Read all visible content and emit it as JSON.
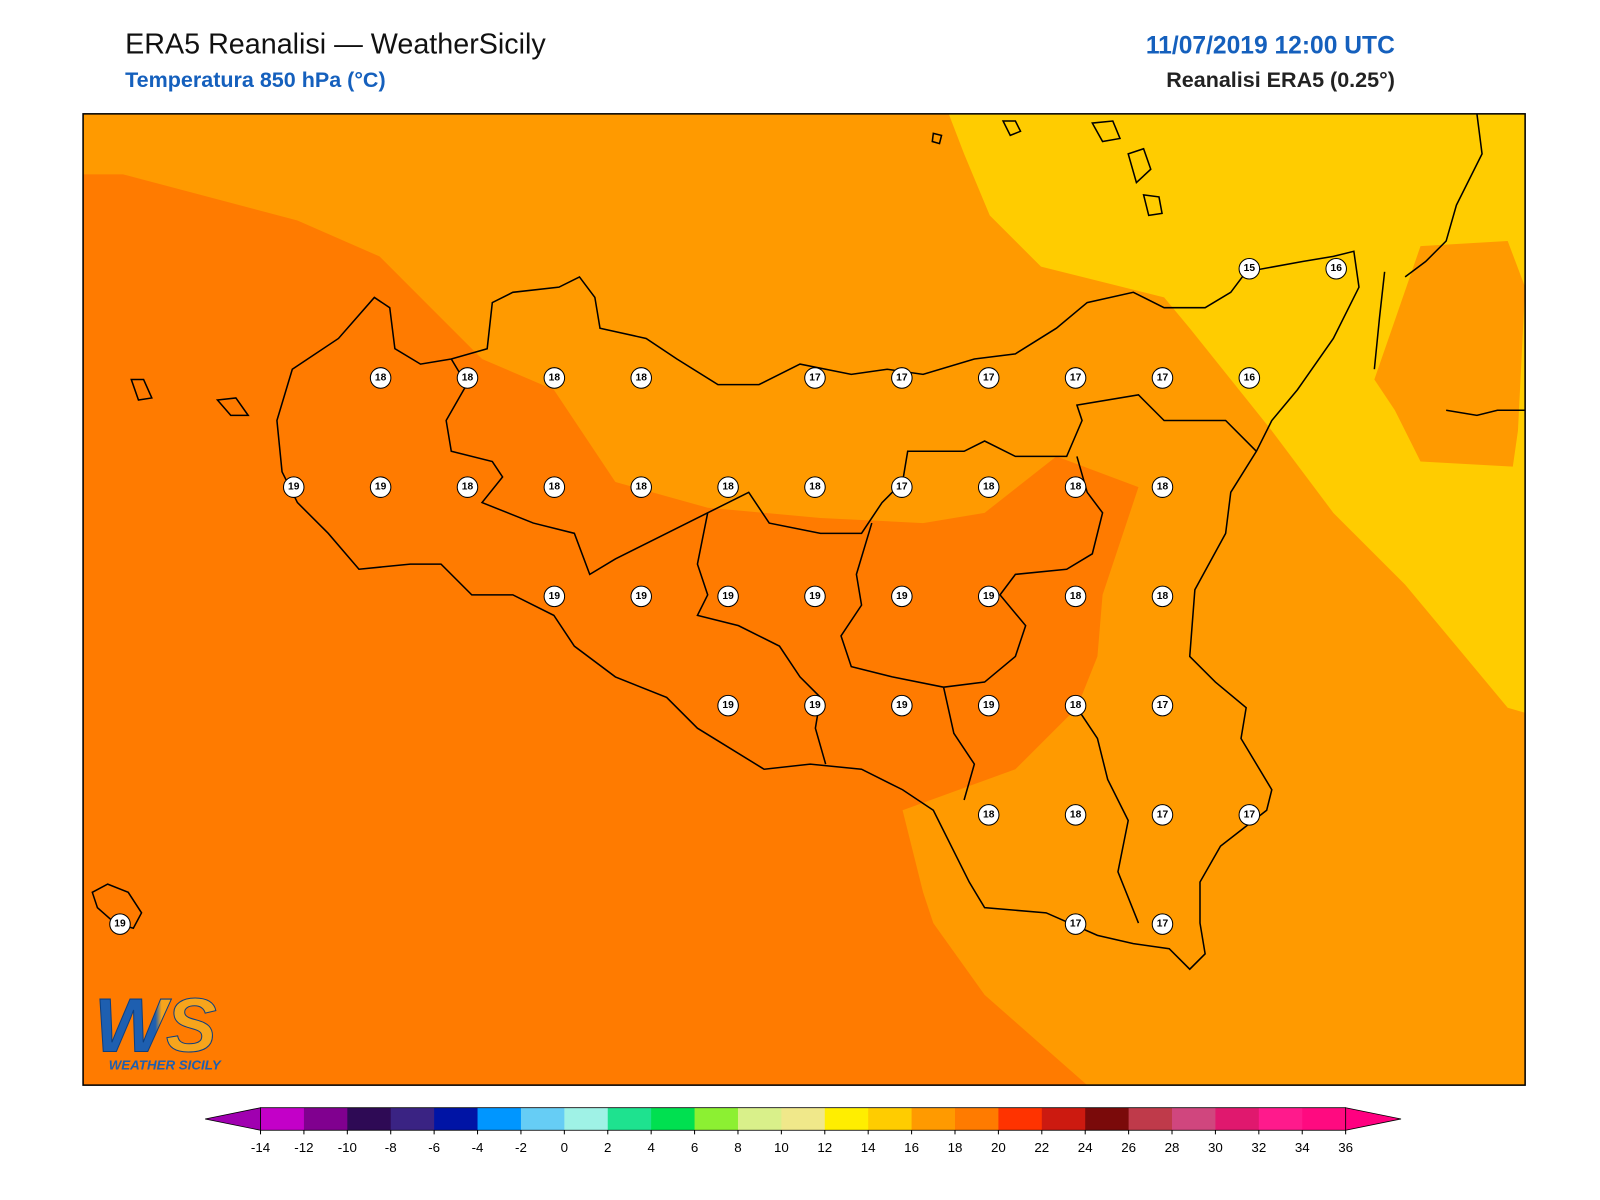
{
  "header": {
    "title": "ERA5 Reanalisi — WeatherSicily",
    "subtitle": "Temperatura 850 hPa (°C)",
    "datetime": "11/07/2019 12:00 UTC",
    "source": "Reanalisi ERA5 (0.25°)"
  },
  "map": {
    "values": [
      15,
      16,
      18,
      18,
      18,
      18,
      17,
      17,
      17,
      17,
      17,
      16,
      19,
      19,
      18,
      18,
      18,
      18,
      18,
      17,
      18,
      18,
      18,
      19,
      19,
      19,
      19,
      19,
      19,
      18,
      18,
      19,
      19,
      19,
      19,
      18,
      17,
      18,
      18,
      17,
      17,
      19,
      17,
      17
    ],
    "field_colors": [
      "#ff9a00",
      "#ff7b00",
      "#ffcc00"
    ]
  },
  "colorbar": {
    "ticks": [
      -14,
      -12,
      -10,
      -8,
      -6,
      -4,
      -2,
      0,
      2,
      4,
      6,
      8,
      10,
      12,
      14,
      16,
      18,
      20,
      22,
      24,
      26,
      28,
      30,
      32,
      34,
      36
    ],
    "colors": [
      "#c300c8",
      "#80008f",
      "#2e0a55",
      "#3a2383",
      "#0014a5",
      "#0096ff",
      "#66cdf5",
      "#9ff2e6",
      "#1ee28f",
      "#00e050",
      "#8cf032",
      "#d9f08a",
      "#f0e88a",
      "#ffee00",
      "#ffcc00",
      "#ff9a00",
      "#ff7b00",
      "#ff3300",
      "#cc1a10",
      "#7a0a0a",
      "#bf3a4a",
      "#d0467e",
      "#e0186e",
      "#ff1a8c",
      "#ff0a80"
    ],
    "under_color": "#a000b0",
    "over_color": "#ff0080"
  },
  "logo": {
    "mark": "WS",
    "text": "WEATHER SICILY"
  }
}
